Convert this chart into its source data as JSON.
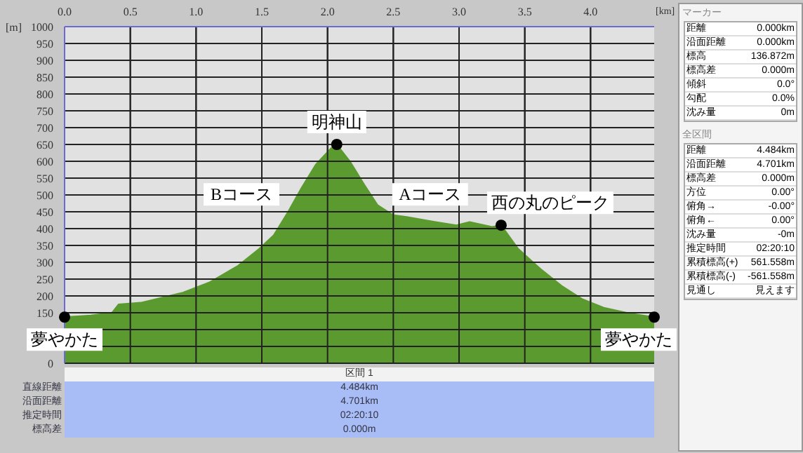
{
  "chart_data": {
    "type": "area",
    "xlabel": "[km]",
    "ylabel": "[m]",
    "color": "#5b9a2f",
    "x": [
      0,
      0.2,
      0.36,
      0.41,
      0.58,
      0.9,
      1.1,
      1.32,
      1.48,
      1.59,
      1.7,
      1.8,
      1.91,
      2.03,
      2.07,
      2.17,
      2.28,
      2.38,
      2.5,
      2.6,
      2.82,
      2.98,
      3.08,
      3.25,
      3.32,
      3.45,
      3.62,
      3.78,
      3.94,
      4.1,
      4.3,
      4.484
    ],
    "values": [
      137,
      142,
      150,
      175,
      180,
      210,
      240,
      290,
      340,
      380,
      450,
      520,
      590,
      640,
      650,
      600,
      530,
      470,
      440,
      435,
      420,
      410,
      420,
      405,
      410,
      340,
      280,
      230,
      190,
      165,
      148,
      137
    ],
    "xlim": [
      0,
      4.484
    ],
    "ylim": [
      0,
      1000
    ],
    "xticks": [
      {
        "value": 0,
        "label": "0.0"
      },
      {
        "value": 0.5,
        "label": "0.5"
      },
      {
        "value": 1,
        "label": "1.0"
      },
      {
        "value": 1.5,
        "label": "1.5"
      },
      {
        "value": 2,
        "label": "2.0"
      },
      {
        "value": 2.5,
        "label": "2.5"
      },
      {
        "value": 3,
        "label": "3.0"
      },
      {
        "value": 3.5,
        "label": "3.5"
      },
      {
        "value": 4,
        "label": "4.0"
      }
    ],
    "yticks": [
      0,
      {
        "value": 50,
        "label": null
      },
      {
        "value": 100,
        "label": null
      },
      150,
      200,
      250,
      300,
      350,
      400,
      450,
      500,
      550,
      600,
      650,
      700,
      750,
      800,
      850,
      900,
      950,
      1000
    ],
    "grid": true,
    "marker": "none",
    "annotations": [
      {
        "text": "夢やかた",
        "x": 0,
        "y": 137
      },
      {
        "text": "明神山",
        "x": 2.07,
        "y": 650
      },
      "Bコース",
      "Aコース",
      {
        "text": "西の丸のピーク",
        "x": 3.32,
        "y": 410
      },
      {
        "text": "夢やかた",
        "x": 4.484,
        "y": 137
      },
      "マーカー",
      "距離 0.000km",
      "沿面距離 0.000km",
      "標高 136.872m",
      "標高差 0.000m",
      "傾斜 0.0°",
      "勾配 0.0%",
      "沈み量 0m",
      "全区間",
      "距離 4.484km",
      "沿面距離 4.701km",
      "標高差 0.000m",
      "方位 0.00°",
      "俯角→ -0.00°",
      "俯角← 0.00°",
      "沈み量 -0m",
      "推定時間 02:20:10",
      "累積標高(+) 561.558m",
      "累積標高(-) -561.558m",
      "見通し 見えます",
      "区間 1",
      "直線距離 4.484km",
      "沿面距離 4.701km",
      "推定時間 02:20:10",
      "標高差 0.000m"
    ]
  }
}
